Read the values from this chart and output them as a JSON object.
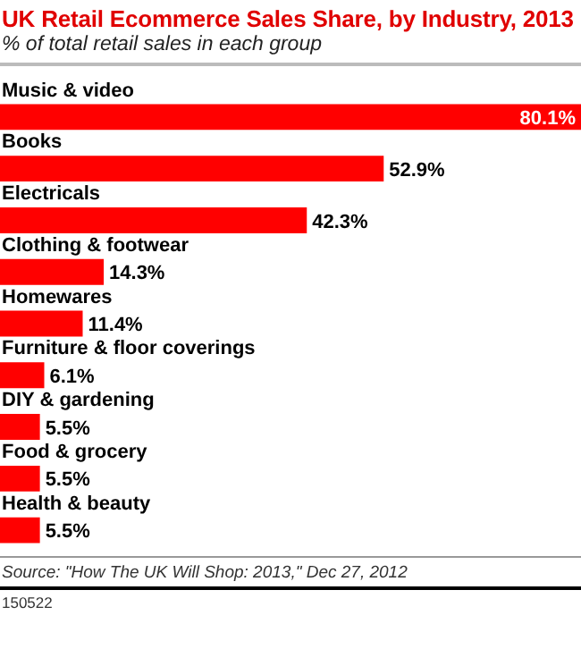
{
  "chart_data": {
    "type": "bar",
    "orientation": "horizontal",
    "title": "UK Retail Ecommerce Sales Share, by Industry, 2013",
    "subtitle": "% of total retail sales in each group",
    "categories": [
      "Music & video",
      "Books",
      "Electricals",
      "Clothing & footwear",
      "Homewares",
      "Furniture & floor coverings",
      "DIY & gardening",
      "Food & grocery",
      "Health & beauty"
    ],
    "values": [
      80.1,
      52.9,
      42.3,
      14.3,
      11.4,
      6.1,
      5.5,
      5.5,
      5.5
    ],
    "value_labels": [
      "80.1%",
      "52.9%",
      "42.3%",
      "14.3%",
      "11.4%",
      "6.1%",
      "5.5%",
      "5.5%",
      "5.5%"
    ],
    "color": "#ff0000",
    "annotations": [
      "Source: \"How The UK Will Shop: 2013,\" Dec 27, 2012",
      "150522"
    ]
  }
}
